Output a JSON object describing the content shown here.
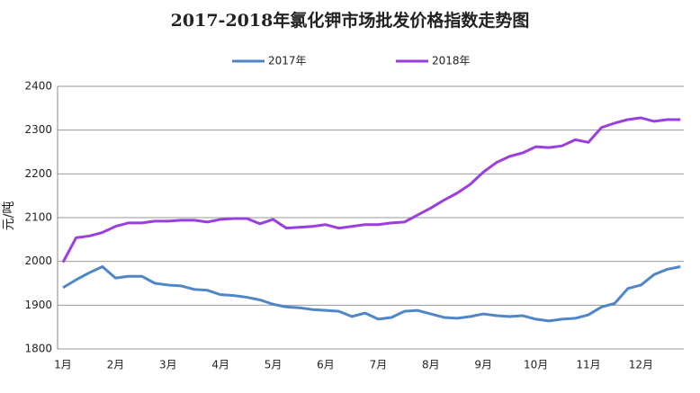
{
  "chart_data": {
    "type": "line",
    "title": "2017-2018年氯化钾市场批发价格指数走势图",
    "y_label": "元/吨",
    "categories": [
      "1月",
      null,
      null,
      null,
      "2月",
      null,
      null,
      null,
      "3月",
      null,
      null,
      null,
      "4月",
      null,
      null,
      null,
      "5月",
      null,
      null,
      null,
      "6月",
      null,
      null,
      null,
      "7月",
      null,
      null,
      null,
      "8月",
      null,
      null,
      null,
      "9月",
      null,
      null,
      null,
      "10月",
      null,
      null,
      null,
      "11月",
      null,
      null,
      null,
      "12月",
      null,
      null,
      null
    ],
    "series": [
      {
        "name": "2017年",
        "color": "#4f86c6",
        "values": [
          1940,
          1958,
          1974,
          1988,
          1962,
          1966,
          1966,
          1950,
          1946,
          1944,
          1936,
          1934,
          1924,
          1922,
          1918,
          1912,
          1902,
          1896,
          1894,
          1890,
          1888,
          1886,
          1874,
          1882,
          1868,
          1872,
          1886,
          1888,
          1880,
          1872,
          1870,
          1874,
          1880,
          1876,
          1874,
          1876,
          1868,
          1864,
          1868,
          1870,
          1878,
          1896,
          1904,
          1938,
          1946,
          1970,
          1982,
          1988
        ]
      },
      {
        "name": "2018年",
        "color": "#9b3ee0",
        "values": [
          1998,
          2054,
          2058,
          2066,
          2080,
          2088,
          2088,
          2092,
          2092,
          2094,
          2094,
          2090,
          2096,
          2098,
          2098,
          2086,
          2096,
          2076,
          2078,
          2080,
          2084,
          2076,
          2080,
          2084,
          2084,
          2088,
          2090,
          2106,
          2122,
          2140,
          2156,
          2176,
          2204,
          2226,
          2240,
          2248,
          2262,
          2260,
          2264,
          2278,
          2272,
          2306,
          2316,
          2324,
          2328,
          2320,
          2324,
          2324
        ]
      }
    ],
    "ylim": [
      1800,
      2400
    ],
    "yticks": [
      1800,
      1900,
      2000,
      2100,
      2200,
      2300,
      2400
    ],
    "grid": true,
    "legend": "top"
  }
}
